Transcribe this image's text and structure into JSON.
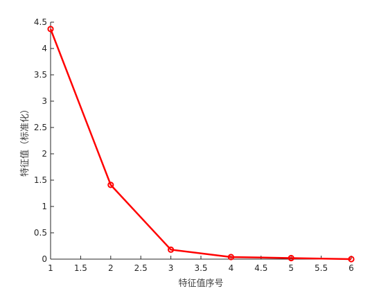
{
  "chart_data": {
    "type": "line",
    "title": "",
    "xlabel": "特征值序号",
    "ylabel": "特征值（标准化）",
    "x": [
      1,
      2,
      3,
      4,
      5,
      6
    ],
    "series": [
      {
        "values": [
          4.37,
          1.41,
          0.18,
          0.04,
          0.02,
          0.0
        ],
        "color": "#ff0000",
        "marker": "circle"
      }
    ],
    "xlim": [
      1,
      6
    ],
    "ylim": [
      0,
      4.5
    ],
    "xticks": [
      1,
      1.5,
      2,
      2.5,
      3,
      3.5,
      4,
      4.5,
      5,
      5.5,
      6
    ],
    "xtick_labels": [
      "1",
      "1.5",
      "2",
      "2.5",
      "3",
      "3.5",
      "4",
      "4.5",
      "5",
      "5.5",
      "6"
    ],
    "yticks": [
      0,
      0.5,
      1,
      1.5,
      2,
      2.5,
      3,
      3.5,
      4,
      4.5
    ],
    "ytick_labels": [
      "0",
      "0.5",
      "1",
      "1.5",
      "2",
      "2.5",
      "3",
      "3.5",
      "4",
      "4.5"
    ],
    "grid": false,
    "box": "left-bottom"
  }
}
